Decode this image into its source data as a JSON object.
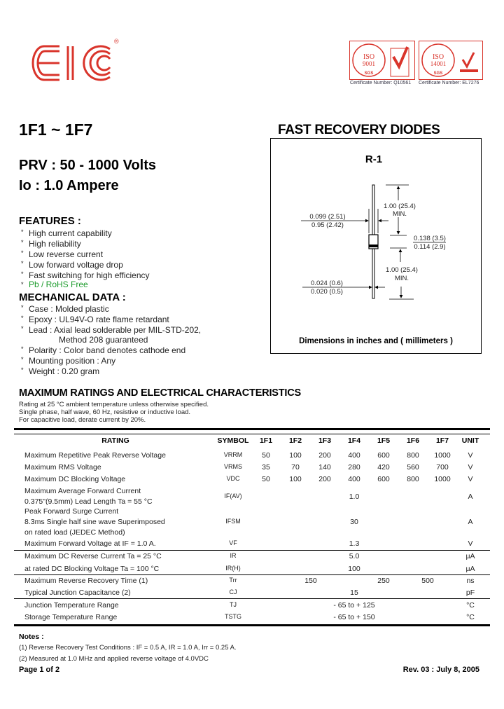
{
  "header": {
    "logo_text": "EIC",
    "registered_mark": "®",
    "cert1": {
      "label": "ISO 9001",
      "org": "SGS",
      "number": "Certificate Number: Q10561"
    },
    "cert2": {
      "label": "ISO 14001",
      "org": "SGS",
      "number": "Certificate Number: EL7276"
    },
    "brand_color": "#d9342b"
  },
  "part": {
    "title": "1F1 ~ 1F7",
    "category": "FAST RECOVERY DIODES",
    "prv": "PRV : 50 - 1000 Volts",
    "io": "Io : 1.0 Ampere"
  },
  "features": {
    "heading": "FEATURES :",
    "items": [
      "High current capability",
      "High reliability",
      "Low reverse current",
      "Low forward voltage drop",
      "Fast switching for high efficiency"
    ],
    "rohs": "Pb / RoHS Free",
    "rohs_color": "#1a9a2a"
  },
  "mechanical": {
    "heading": "MECHANICAL  DATA :",
    "items": [
      "Case :  Molded plastic",
      "Epoxy : UL94V-O rate flame retardant",
      "Lead : Axial lead solderable per MIL-STD-202,",
      "Polarity : Color band denotes cathode end",
      "Mounting  position : Any",
      "Weight :    0.20  gram"
    ],
    "lead_cont": "Method 208 guaranteed"
  },
  "package": {
    "name": "R-1",
    "dim_lead_len_top": "1.00 (25.4)",
    "min_top": "MIN.",
    "dim_body_dia_max": "0.099 (2.51)",
    "dim_body_dia_min": "0.95 (2.42)",
    "dim_body_len_max": "0.138 (3.5)",
    "dim_body_len_min": "0.114 (2.9)",
    "dim_lead_len_bot": "1.00 (25.4)",
    "min_bot": "MIN.",
    "dim_lead_dia_max": "0.024 (0.6)",
    "dim_lead_dia_min": "0.020 (0.5)",
    "caption": "Dimensions in inches and ( millimeters )"
  },
  "ratings": {
    "heading": "MAXIMUM RATINGS AND ELECTRICAL CHARACTERISTICS",
    "conditions": [
      "Rating at  25 °C ambient temperature unless otherwise specified.",
      "Single phase, half wave, 60 Hz, resistive or inductive load.",
      "For capacitive load, derate current by 20%."
    ],
    "columns": [
      "RATING",
      "SYMBOL",
      "1F1",
      "1F2",
      "1F3",
      "1F4",
      "1F5",
      "1F6",
      "1F7",
      "UNIT"
    ],
    "rows": [
      {
        "rating": [
          "Maximum Repetitive Peak Reverse Voltage"
        ],
        "symbol": "VRRM",
        "values": [
          "50",
          "100",
          "200",
          "400",
          "600",
          "800",
          "1000"
        ],
        "unit": "V"
      },
      {
        "rating": [
          "Maximum RMS Voltage"
        ],
        "symbol": "VRMS",
        "values": [
          "35",
          "70",
          "140",
          "280",
          "420",
          "560",
          "700"
        ],
        "unit": "V"
      },
      {
        "rating": [
          "Maximum DC Blocking Voltage"
        ],
        "symbol": "VDC",
        "values": [
          "50",
          "100",
          "200",
          "400",
          "600",
          "800",
          "1000"
        ],
        "unit": "V"
      },
      {
        "rating": [
          "Maximum Average Forward Current",
          "0.375\"(9.5mm) Lead Length  Ta = 55 °C"
        ],
        "symbol": "IF(AV)",
        "common": "1.0",
        "unit": "A"
      },
      {
        "rating": [
          "Peak Forward Surge Current",
          "8.3ms Single half sine wave Superimposed",
          "on rated load  (JEDEC Method)"
        ],
        "symbol": "IFSM",
        "common": "30",
        "unit": "A"
      },
      {
        "rating": [
          "Maximum Forward Voltage at IF = 1.0 A."
        ],
        "symbol": "VF",
        "common": "1.3",
        "unit": "V"
      },
      {
        "rating": [
          "Maximum DC Reverse Current       Ta = 25 °C"
        ],
        "symbol": "IR",
        "common": "5.0",
        "unit": "μA"
      },
      {
        "rating": [
          "at rated DC Blocking Voltage        Ta = 100 °C"
        ],
        "symbol": "IR(H)",
        "common": "100",
        "unit": "μA"
      },
      {
        "rating": [
          "Maximum Reverse Recovery Time (1)"
        ],
        "symbol": "Trr",
        "groups": [
          "150",
          "250",
          "500"
        ],
        "unit": "ns"
      },
      {
        "rating": [
          "Typical Junction Capacitance (2)"
        ],
        "symbol": "CJ",
        "common": "15",
        "unit": "pF"
      },
      {
        "rating": [
          "Junction Temperature Range"
        ],
        "symbol": "TJ",
        "common": "- 65 to + 125",
        "unit": "°C"
      },
      {
        "rating": [
          "Storage Temperature Range"
        ],
        "symbol": "TSTG",
        "common": "- 65 to + 150",
        "unit": "°C"
      }
    ]
  },
  "notes": {
    "heading": "Notes :",
    "items": [
      "(1)  Reverse Recovery Test Conditions : IF = 0.5 A, IR = 1.0 A, Irr = 0.25 A.",
      "(2)  Measured at 1.0 MHz and applied  reverse voltage of 4.0VDC"
    ]
  },
  "footer": {
    "page": "Page 1 of 2",
    "revision": "Rev. 03 : July 8, 2005"
  }
}
